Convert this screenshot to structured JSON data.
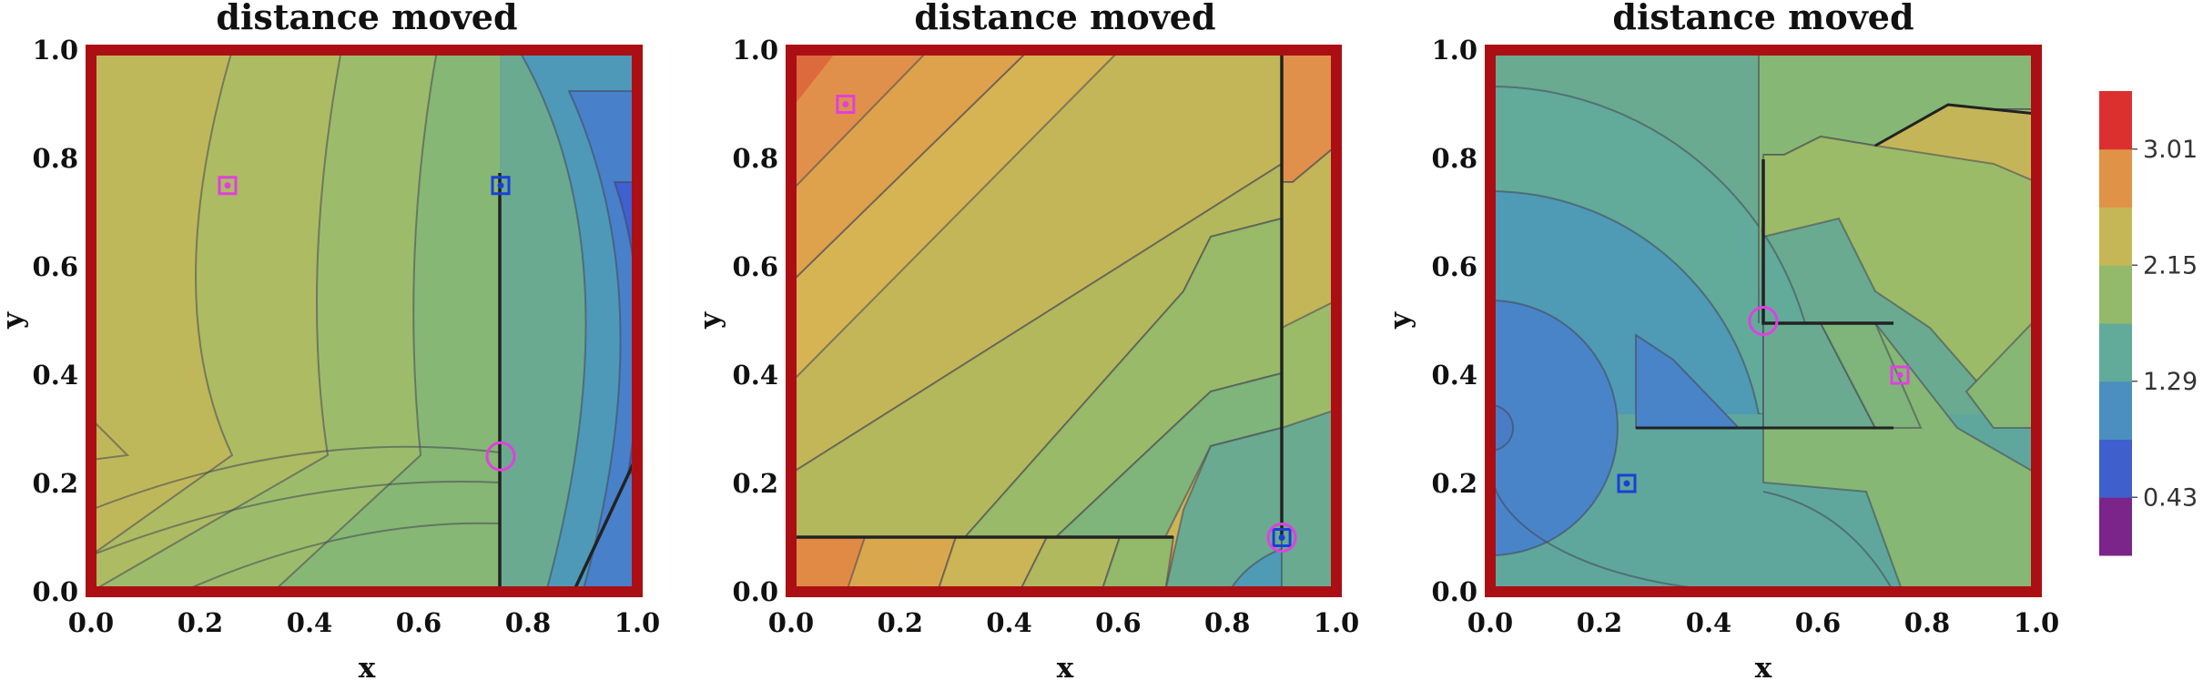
{
  "chart_data": [
    {
      "type": "contour",
      "title": "distance moved",
      "xlabel": "x",
      "ylabel": "y",
      "xlim": [
        0.0,
        1.0
      ],
      "ylim": [
        0.0,
        1.0
      ],
      "xticks": [
        "0.0",
        "0.2",
        "0.4",
        "0.6",
        "0.8",
        "1.0"
      ],
      "yticks": [
        "0.0",
        "0.2",
        "0.4",
        "0.6",
        "0.8",
        "1.0"
      ],
      "markers": [
        {
          "shape": "square",
          "color": "#e040e0",
          "x": 0.25,
          "y": 0.75
        },
        {
          "shape": "square",
          "color": "#1a3fd8",
          "x": 0.75,
          "y": 0.75
        },
        {
          "shape": "circle",
          "color": "#e040e0",
          "x": 0.75,
          "y": 0.25
        }
      ],
      "boundaries": [
        [
          [
            0.75,
            1.0
          ],
          [
            0.75,
            0.0
          ]
        ],
        [
          [
            0.89,
            0.05
          ],
          [
            1.0,
            0.25
          ]
        ]
      ]
    },
    {
      "type": "contour",
      "title": "distance moved",
      "xlabel": "x",
      "ylabel": "y",
      "xlim": [
        0.0,
        1.0
      ],
      "ylim": [
        0.0,
        1.0
      ],
      "xticks": [
        "0.0",
        "0.2",
        "0.4",
        "0.6",
        "0.8",
        "1.0"
      ],
      "yticks": [
        "0.0",
        "0.2",
        "0.4",
        "0.6",
        "0.8",
        "1.0"
      ],
      "markers": [
        {
          "shape": "square",
          "color": "#e040e0",
          "x": 0.1,
          "y": 0.9
        },
        {
          "shape": "square",
          "color": "#1a3fd8",
          "x": 0.9,
          "y": 0.1
        },
        {
          "shape": "circle",
          "color": "#e040e0",
          "x": 0.9,
          "y": 0.1
        }
      ],
      "boundaries": [
        [
          [
            0.0,
            0.1
          ],
          [
            0.7,
            0.1
          ]
        ],
        [
          [
            0.9,
            1.0
          ],
          [
            0.9,
            0.1
          ]
        ]
      ]
    },
    {
      "type": "contour",
      "title": "distance moved",
      "xlabel": "x",
      "ylabel": "y",
      "xlim": [
        0.0,
        1.0
      ],
      "ylim": [
        0.0,
        1.0
      ],
      "xticks": [
        "0.0",
        "0.2",
        "0.4",
        "0.6",
        "0.8",
        "1.0"
      ],
      "yticks": [
        "0.0",
        "0.2",
        "0.4",
        "0.6",
        "0.8",
        "1.0"
      ],
      "markers": [
        {
          "shape": "square",
          "color": "#1a3fd8",
          "x": 0.25,
          "y": 0.2
        },
        {
          "shape": "square",
          "color": "#e040e0",
          "x": 0.75,
          "y": 0.4
        },
        {
          "shape": "circle",
          "color": "#e040e0",
          "x": 0.5,
          "y": 0.5
        }
      ],
      "boundaries": [
        [
          [
            0.5,
            0.81
          ],
          [
            0.5,
            0.5
          ],
          [
            0.75,
            0.5
          ]
        ],
        [
          [
            0.27,
            0.3
          ],
          [
            0.65,
            0.3
          ]
        ]
      ]
    }
  ],
  "colorbar": {
    "labels": [
      "3.01",
      "2.15",
      "1.29",
      "0.43"
    ],
    "label_values": [
      3.01,
      2.15,
      1.29,
      0.43
    ],
    "range": [
      0.0,
      3.44
    ],
    "colors": [
      "#7b2489",
      "#3e5fcd",
      "#4a8fc0",
      "#62aa9a",
      "#92ba6a",
      "#c6b756",
      "#e09346",
      "#dc3030"
    ]
  },
  "frame_color": "#ab0f13"
}
